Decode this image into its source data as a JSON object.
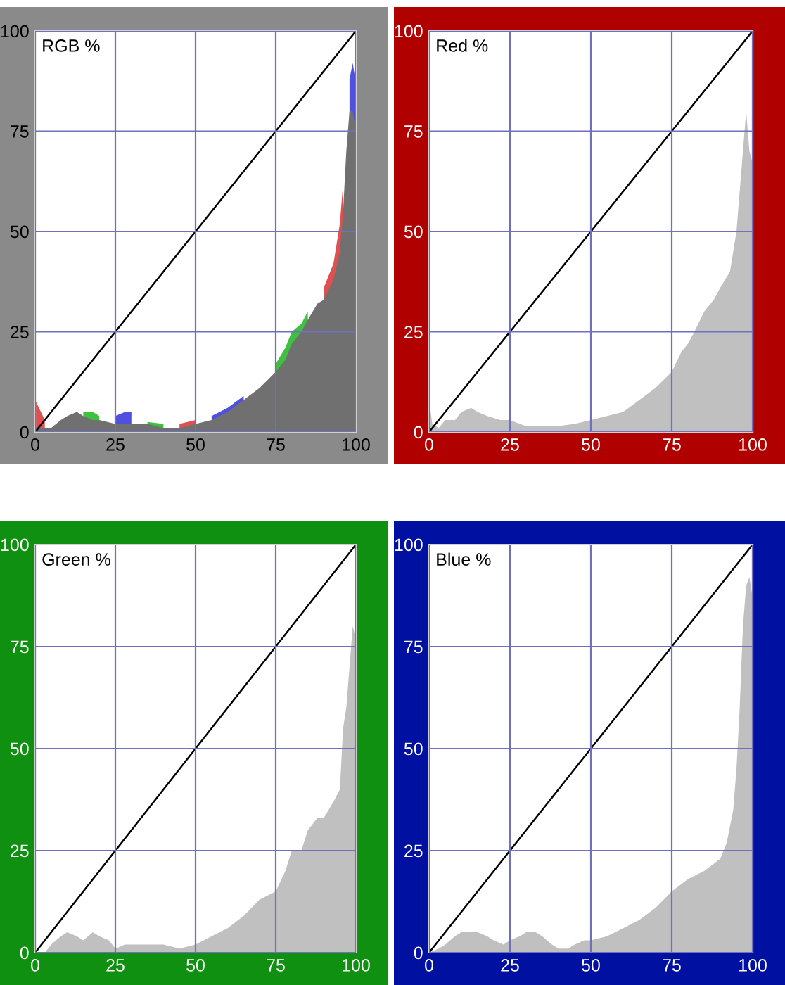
{
  "chart_data": [
    {
      "type": "area",
      "title": "RGB %",
      "xlim": [
        0,
        100
      ],
      "ylim": [
        0,
        100
      ],
      "xticks": [
        0,
        25,
        50,
        75,
        100
      ],
      "yticks": [
        0,
        25,
        50,
        75,
        100
      ],
      "grid": true,
      "series": [
        {
          "color": "#e05050",
          "x": [
            0,
            3
          ],
          "values": [
            8,
            3
          ]
        },
        {
          "color": "#e05050",
          "x": [
            45,
            50
          ],
          "values": [
            2,
            3
          ]
        },
        {
          "color": "#e05050",
          "x": [
            90,
            93,
            95,
            96
          ],
          "values": [
            36,
            42,
            52,
            62
          ]
        },
        {
          "color": "#40c040",
          "x": [
            15,
            18,
            20
          ],
          "values": [
            5,
            5,
            4
          ]
        },
        {
          "color": "#40c040",
          "x": [
            35,
            40
          ],
          "values": [
            2.5,
            2
          ]
        },
        {
          "color": "#40c040",
          "x": [
            75,
            78,
            80,
            83,
            85
          ],
          "values": [
            17,
            21,
            25,
            27,
            30
          ]
        },
        {
          "color": "#5050e0",
          "x": [
            25,
            28,
            30
          ],
          "values": [
            4,
            5,
            5
          ]
        },
        {
          "color": "#5050e0",
          "x": [
            55,
            60,
            65
          ],
          "values": [
            4,
            6,
            9
          ]
        },
        {
          "color": "#5050e0",
          "x": [
            98,
            99,
            100
          ],
          "values": [
            88,
            92,
            87
          ]
        },
        {
          "color": "#707070",
          "x": [
            0,
            3,
            5,
            8,
            10,
            13,
            15,
            18,
            20,
            25,
            28,
            30,
            35,
            40,
            45,
            50,
            55,
            60,
            65,
            70,
            75,
            78,
            80,
            83,
            85,
            88,
            90,
            93,
            95,
            96,
            97,
            98,
            99,
            100
          ],
          "values": [
            1,
            1,
            1,
            3,
            4,
            5,
            4,
            3,
            3,
            2,
            2,
            2,
            2,
            1,
            1,
            2,
            3,
            5,
            8,
            11,
            15,
            18,
            22,
            25,
            28,
            32,
            33,
            38,
            45,
            55,
            70,
            80,
            80,
            75
          ]
        },
        {
          "type": "line",
          "color": "#000000",
          "x": [
            0,
            100
          ],
          "values": [
            0,
            100
          ]
        }
      ]
    },
    {
      "type": "area",
      "title": "Red %",
      "xlim": [
        0,
        100
      ],
      "ylim": [
        0,
        100
      ],
      "xticks": [
        0,
        25,
        50,
        75,
        100
      ],
      "yticks": [
        0,
        25,
        50,
        75,
        100
      ],
      "grid": true,
      "series": [
        {
          "color": "#c0c0c0",
          "x": [
            0,
            1,
            3,
            5,
            8,
            10,
            13,
            15,
            18,
            22,
            25,
            28,
            30,
            35,
            40,
            45,
            50,
            55,
            60,
            65,
            70,
            75,
            78,
            80,
            82,
            85,
            88,
            90,
            93,
            95,
            96,
            97,
            98,
            99,
            100
          ],
          "values": [
            8,
            2,
            1,
            3,
            3,
            5,
            6,
            5,
            4,
            3,
            3,
            2,
            1.5,
            1.5,
            1.5,
            2,
            3,
            4,
            5,
            8,
            11,
            15,
            20,
            22,
            25,
            30,
            33,
            36,
            40,
            50,
            60,
            70,
            80,
            70,
            67
          ]
        },
        {
          "type": "line",
          "color": "#000000",
          "x": [
            0,
            100
          ],
          "values": [
            0,
            100
          ]
        }
      ]
    },
    {
      "type": "area",
      "title": "Green %",
      "xlim": [
        0,
        100
      ],
      "ylim": [
        0,
        100
      ],
      "xticks": [
        0,
        25,
        50,
        75,
        100
      ],
      "yticks": [
        0,
        25,
        50,
        75,
        100
      ],
      "grid": true,
      "series": [
        {
          "color": "#c0c0c0",
          "x": [
            0,
            3,
            5,
            8,
            10,
            13,
            15,
            18,
            20,
            23,
            25,
            28,
            30,
            35,
            40,
            45,
            50,
            55,
            60,
            65,
            70,
            75,
            78,
            80,
            83,
            85,
            88,
            90,
            93,
            95,
            96,
            97,
            98,
            99,
            100
          ],
          "values": [
            0,
            0,
            2,
            4,
            5,
            4,
            3,
            5,
            4,
            3,
            1,
            2,
            2,
            2,
            2,
            1,
            2,
            4,
            6,
            9,
            13,
            15,
            20,
            25,
            25,
            30,
            33,
            33,
            37,
            40,
            55,
            60,
            70,
            80,
            77
          ]
        },
        {
          "type": "line",
          "color": "#000000",
          "x": [
            0,
            100
          ],
          "values": [
            0,
            100
          ]
        }
      ]
    },
    {
      "type": "area",
      "title": "Blue %",
      "xlim": [
        0,
        100
      ],
      "ylim": [
        0,
        100
      ],
      "xticks": [
        0,
        25,
        50,
        75,
        100
      ],
      "yticks": [
        0,
        25,
        50,
        75,
        100
      ],
      "grid": true,
      "series": [
        {
          "color": "#c0c0c0",
          "x": [
            0,
            3,
            5,
            8,
            10,
            13,
            15,
            18,
            20,
            23,
            25,
            28,
            30,
            33,
            35,
            38,
            40,
            43,
            45,
            48,
            50,
            55,
            60,
            65,
            70,
            75,
            80,
            85,
            90,
            92,
            94,
            95,
            96,
            97,
            98,
            99,
            100
          ],
          "values": [
            0,
            1,
            2,
            4,
            5,
            5,
            5,
            4,
            3,
            2,
            3,
            4,
            5,
            5,
            4,
            2,
            1,
            1,
            2,
            3,
            3,
            4,
            6,
            8,
            11,
            15,
            18,
            20,
            23,
            27,
            35,
            45,
            60,
            80,
            90,
            92,
            87
          ]
        },
        {
          "type": "line",
          "color": "#000000",
          "x": [
            0,
            100
          ],
          "values": [
            0,
            100
          ]
        }
      ]
    }
  ]
}
